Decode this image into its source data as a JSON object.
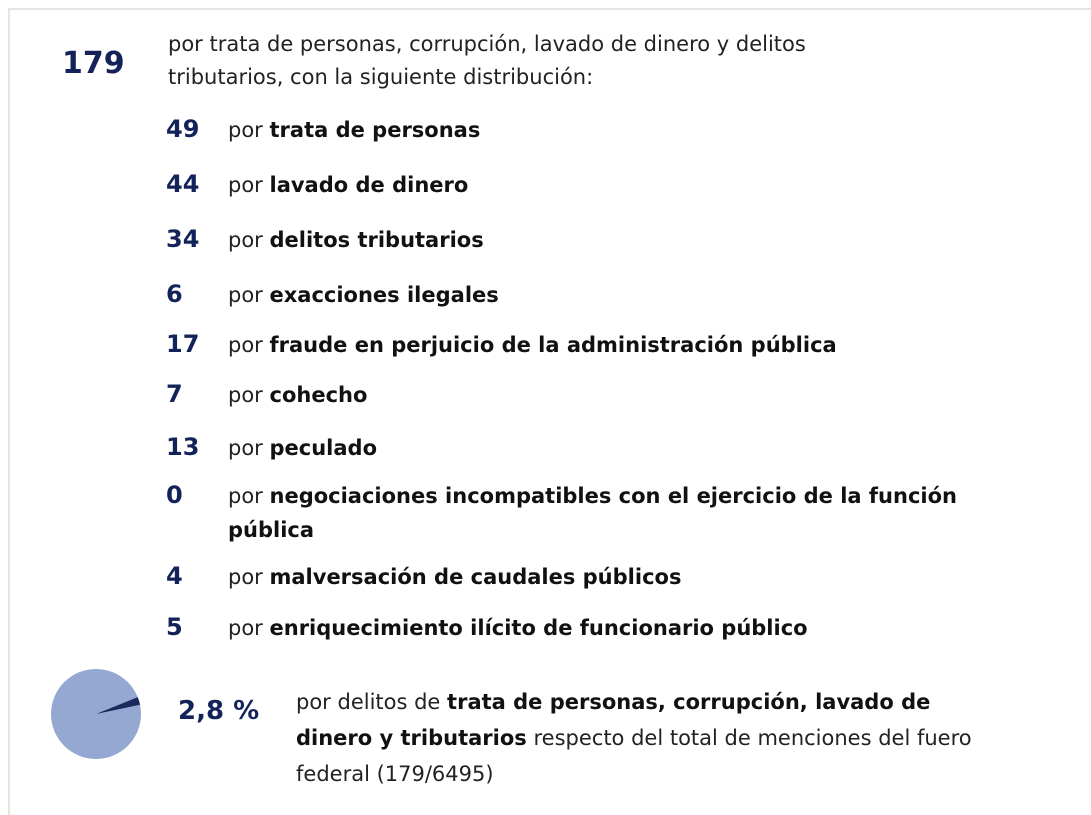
{
  "header": {
    "total": "179",
    "text": "por trata de personas, corrupción, lavado de dinero y delitos tributarios, con la siguiente distribución:"
  },
  "items": [
    {
      "number": "49",
      "prefix": "por",
      "label": "trata de personas"
    },
    {
      "number": "44",
      "prefix": "por",
      "label": "lavado de dinero"
    },
    {
      "number": "34",
      "prefix": "por",
      "label": "delitos tributarios"
    },
    {
      "number": "6",
      "prefix": "por",
      "label": "exacciones ilegales"
    },
    {
      "number": "17",
      "prefix": "por",
      "label": "fraude en perjuicio de la administración pública"
    },
    {
      "number": "7",
      "prefix": "por",
      "label": "cohecho"
    },
    {
      "number": "13",
      "prefix": "por",
      "label": "peculado"
    },
    {
      "number": "0",
      "prefix": "por",
      "label": "negociaciones incompatibles con el ejercicio de la función pública"
    },
    {
      "number": "4",
      "prefix": "por",
      "label": "malversación de caudales públicos"
    },
    {
      "number": "5",
      "prefix": "por",
      "label": "enriquecimiento ilícito de funcionario público"
    }
  ],
  "summary": {
    "percentage": {
      "value": 2.8,
      "label": "2,8 %"
    },
    "text_before": "por delitos de",
    "text_bold": "trata de personas, corrupción, lavado de dinero y tributarios",
    "text_after": "respecto del total de menciones del fuero federal (179/6495)"
  }
}
